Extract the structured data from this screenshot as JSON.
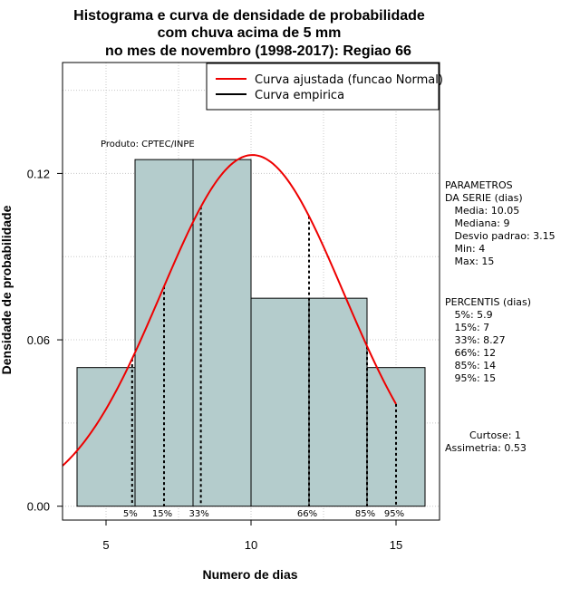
{
  "chart_data": {
    "type": "bar",
    "title_lines": [
      "Histograma e curva de densidade de probabilidade",
      "com chuva acima de 5 mm",
      "no mes de novembro (1998-2017): Regiao 66"
    ],
    "xlabel": "Numero de dias",
    "ylabel": "Densidade de probabilidade",
    "xlim": [
      3.5,
      16.5
    ],
    "ylim": [
      -0.005,
      0.16
    ],
    "x_ticks": [
      5,
      10,
      15
    ],
    "x_tick_labels": [
      "5",
      "10",
      "15"
    ],
    "y_ticks": [
      0.0,
      0.06,
      0.12
    ],
    "y_tick_labels": [
      "0.00",
      "0.06",
      "0.12"
    ],
    "grid": true,
    "histogram": {
      "bins": [
        {
          "from": 4,
          "to": 6,
          "density": 0.05
        },
        {
          "from": 6,
          "to": 8,
          "density": 0.125
        },
        {
          "from": 8,
          "to": 10,
          "density": 0.125
        },
        {
          "from": 10,
          "to": 12,
          "density": 0.075
        },
        {
          "from": 12,
          "to": 14,
          "density": 0.075
        },
        {
          "from": 14,
          "to": 16,
          "density": 0.05
        }
      ],
      "fill_color": "#b4cccc",
      "edge_color": "#000000"
    },
    "normal_curve": {
      "mean": 10.05,
      "sd": 3.15,
      "x_range": [
        3.5,
        15
      ],
      "color": "#ee0000"
    },
    "percentile_lines": [
      {
        "label": "5%",
        "x": 5.9
      },
      {
        "label": "15%",
        "x": 7
      },
      {
        "label": "33%",
        "x": 8.27
      },
      {
        "label": "66%",
        "x": 12
      },
      {
        "label": "85%",
        "x": 14
      },
      {
        "label": "95%",
        "x": 15
      }
    ],
    "legend": {
      "position": "top-right",
      "entries": [
        {
          "label": "Curva ajustada (funcao Normal)",
          "color": "#ee0000"
        },
        {
          "label": "Curva empirica",
          "color": "#000000"
        }
      ]
    },
    "annotation": "Produto: CPTEC/INPE"
  },
  "side_panel": {
    "parametros_lines": [
      "PARAMETROS",
      "DA SERIE (dias)",
      "   Media: 10.05",
      "   Mediana: 9",
      "   Desvio padrao: 3.15",
      "   Min: 4",
      "   Max: 15"
    ],
    "percentis_lines": [
      "PERCENTIS (dias)",
      "   5%: 5.9",
      "   15%: 7",
      "   33%: 8.27",
      "   66%: 12",
      "   85%: 14",
      "   95%: 15"
    ],
    "curtose": "Curtose: 1",
    "assimetria": "Assimetria: 0.53"
  }
}
